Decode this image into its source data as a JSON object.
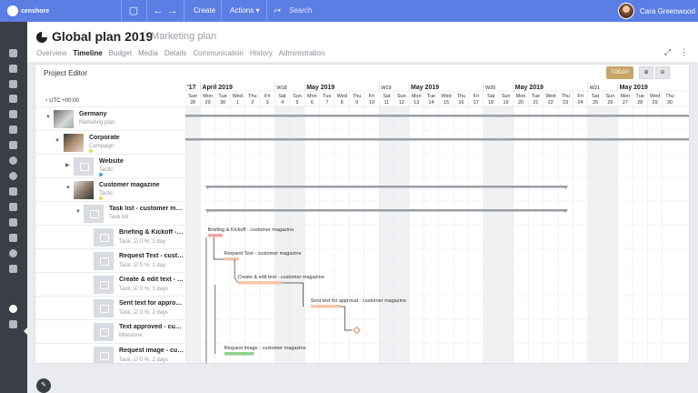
{
  "topbar": {
    "logo_text": "censhore",
    "create_label": "Create",
    "actions_label": "Actions",
    "search_placeholder": "Search",
    "user_name": "Cara Greenwood"
  },
  "header": {
    "title": "Global plan 2019",
    "subtitle": "Marketing plan",
    "tabs": [
      "Overview",
      "Timeline",
      "Budget",
      "Media",
      "Details",
      "Communication",
      "History",
      "Administration"
    ],
    "active_tab": "Timeline"
  },
  "editor": {
    "title": "Project Editor",
    "today_label": "TODAY",
    "timezone": "UTC +00:00"
  },
  "timeline": {
    "month_row": [
      {
        "label": "'17",
        "col": 0
      },
      {
        "label": "April 2019",
        "col": 1
      },
      {
        "label": "W18",
        "col": 6
      },
      {
        "label": "May 2019",
        "col": 8
      },
      {
        "label": "W19",
        "col": 13
      },
      {
        "label": "May 2019",
        "col": 15
      },
      {
        "label": "W20",
        "col": 20
      },
      {
        "label": "May 2019",
        "col": 22
      },
      {
        "label": "W21",
        "col": 27
      },
      {
        "label": "May 2019",
        "col": 29
      }
    ],
    "days": [
      {
        "wd": "Sun",
        "d": "28"
      },
      {
        "wd": "Mon",
        "d": "29"
      },
      {
        "wd": "Tue",
        "d": "30"
      },
      {
        "wd": "Wed",
        "d": "1"
      },
      {
        "wd": "Thu",
        "d": "2"
      },
      {
        "wd": "Fri",
        "d": "3"
      },
      {
        "wd": "Sat",
        "d": "4"
      },
      {
        "wd": "Sun",
        "d": "5"
      },
      {
        "wd": "Mon",
        "d": "6"
      },
      {
        "wd": "Tue",
        "d": "7"
      },
      {
        "wd": "Wed",
        "d": "8"
      },
      {
        "wd": "Thu",
        "d": "9"
      },
      {
        "wd": "Fri",
        "d": "10"
      },
      {
        "wd": "Sat",
        "d": "11"
      },
      {
        "wd": "Sun",
        "d": "12"
      },
      {
        "wd": "Mon",
        "d": "13"
      },
      {
        "wd": "Tue",
        "d": "14"
      },
      {
        "wd": "Wed",
        "d": "15"
      },
      {
        "wd": "Thu",
        "d": "16"
      },
      {
        "wd": "Fri",
        "d": "17"
      },
      {
        "wd": "Sat",
        "d": "18"
      },
      {
        "wd": "Sun",
        "d": "19"
      },
      {
        "wd": "Mon",
        "d": "20"
      },
      {
        "wd": "Tue",
        "d": "21"
      },
      {
        "wd": "Wed",
        "d": "22"
      },
      {
        "wd": "Thu",
        "d": "23"
      },
      {
        "wd": "Fri",
        "d": "24"
      },
      {
        "wd": "Sat",
        "d": "25"
      },
      {
        "wd": "Sun",
        "d": "26"
      },
      {
        "wd": "Mon",
        "d": "27"
      },
      {
        "wd": "Tue",
        "d": "28"
      },
      {
        "wd": "Wed",
        "d": "29"
      },
      {
        "wd": "Thu",
        "d": "30"
      }
    ]
  },
  "rows": [
    {
      "name": "Germany",
      "sub": "Marketing plan"
    },
    {
      "name": "Corporate",
      "sub": "Campaign"
    },
    {
      "name": "Website",
      "sub": "Tactic"
    },
    {
      "name": "Customer magazine",
      "sub": "Tactic"
    },
    {
      "name": "Task list - customer magazine",
      "sub": "Task list"
    },
    {
      "name": "Briefing & Kickoff - customer magazine",
      "sub": "Task, ☑ 0 %, 1 day",
      "bar_label": "Briefing & Kickoff - customer magazine"
    },
    {
      "name": "Request Text - customer magazine",
      "sub": "Task, ☑ 0 %, 1 day",
      "bar_label": "Request Text - customer magazine"
    },
    {
      "name": "Create & edit text - customer magazine",
      "sub": "Task, ☑ 0 %, 3 days",
      "bar_label": "Create & edit text - customer magazine"
    },
    {
      "name": "Sent text for approval - customer magazine",
      "sub": "Task, ☑ 0 %, 2 days",
      "bar_label": "Sent text for approval - customer magazine"
    },
    {
      "name": "Text approved - customer magazine",
      "sub": "Milestone"
    },
    {
      "name": "Request image - customer magazine",
      "sub": "Task, ☑ 0 %, 2 days",
      "bar_label": "Request image - customer magazine"
    }
  ],
  "colors": {
    "topbar": "#5b7ee5",
    "sidebar": "#3a3f47",
    "today_button": "#c7a667",
    "task_bar_red": "#f0a7a7",
    "task_bar_peach": "#f4c7a8",
    "task_bar_green": "#8ed08a",
    "summary_bar": "#9a9ea4",
    "milestone": "#e48a55"
  }
}
